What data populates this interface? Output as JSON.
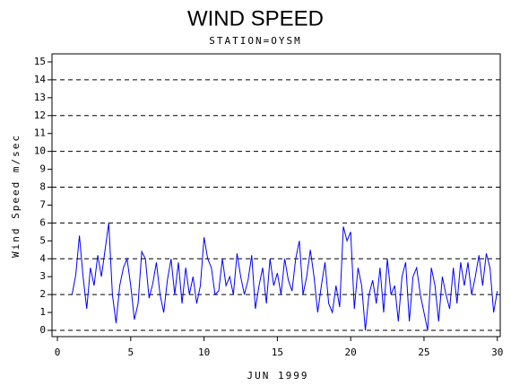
{
  "chart_data": {
    "type": "line",
    "title": "WIND SPEED",
    "subtitle": "STATION=OYSM",
    "ylabel": "Wind Speed m/sec",
    "xlabel": "JUN 1999",
    "color": "#0000ff",
    "x": [
      1.0,
      1.25,
      1.5,
      1.75,
      2.0,
      2.25,
      2.5,
      2.75,
      3.0,
      3.25,
      3.5,
      3.75,
      4.0,
      4.25,
      4.5,
      4.75,
      5.0,
      5.25,
      5.5,
      5.75,
      6.0,
      6.25,
      6.5,
      6.75,
      7.0,
      7.25,
      7.5,
      7.75,
      8.0,
      8.25,
      8.5,
      8.75,
      9.0,
      9.25,
      9.5,
      9.75,
      10.0,
      10.25,
      10.5,
      10.75,
      11.0,
      11.25,
      11.5,
      11.75,
      12.0,
      12.25,
      12.5,
      12.75,
      13.0,
      13.25,
      13.5,
      13.75,
      14.0,
      14.25,
      14.5,
      14.75,
      15.0,
      15.25,
      15.5,
      15.75,
      16.0,
      16.25,
      16.5,
      16.75,
      17.0,
      17.25,
      17.5,
      17.75,
      18.0,
      18.25,
      18.5,
      18.75,
      19.0,
      19.25,
      19.5,
      19.75,
      20.0,
      20.25,
      20.5,
      20.75,
      21.0,
      21.25,
      21.5,
      21.75,
      22.0,
      22.25,
      22.5,
      22.75,
      23.0,
      23.25,
      23.5,
      23.75,
      24.0,
      24.25,
      24.5,
      24.75,
      25.0,
      25.25,
      25.5,
      25.75,
      26.0,
      26.25,
      26.5,
      26.75,
      27.0,
      27.25,
      27.5,
      27.75,
      28.0,
      28.25,
      28.5,
      28.75,
      29.0,
      29.25,
      29.5,
      29.75,
      30.0
    ],
    "values": [
      2.0,
      3.1,
      5.3,
      3.0,
      1.2,
      3.5,
      2.5,
      4.2,
      3.0,
      4.5,
      6.0,
      2.0,
      0.4,
      2.5,
      3.5,
      4.0,
      2.5,
      0.6,
      1.5,
      4.4,
      4.0,
      1.8,
      2.6,
      3.8,
      2.0,
      1.0,
      2.8,
      4.0,
      2.0,
      3.8,
      1.5,
      3.5,
      2.0,
      3.0,
      1.5,
      2.5,
      5.2,
      4.0,
      3.5,
      2.0,
      2.2,
      4.0,
      2.5,
      3.0,
      2.0,
      4.3,
      3.0,
      2.0,
      2.8,
      4.2,
      1.2,
      2.5,
      3.5,
      1.5,
      4.0,
      2.5,
      3.2,
      2.0,
      4.0,
      2.8,
      2.2,
      4.0,
      5.0,
      2.0,
      3.0,
      4.5,
      3.0,
      1.0,
      2.5,
      3.8,
      1.5,
      1.0,
      2.5,
      1.3,
      5.8,
      5.0,
      5.5,
      1.2,
      3.5,
      2.5,
      0.0,
      2.0,
      2.8,
      1.5,
      3.5,
      1.0,
      4.0,
      2.0,
      2.5,
      0.5,
      3.0,
      3.8,
      0.5,
      3.0,
      3.5,
      2.0,
      1.0,
      0.0,
      3.5,
      2.5,
      0.5,
      3.0,
      2.0,
      1.2,
      3.5,
      1.5,
      3.8,
      2.5,
      3.8,
      2.0,
      3.0,
      4.2,
      2.5,
      4.3,
      3.5,
      1.0,
      2.2
    ],
    "xlim": [
      -0.37,
      30.2
    ],
    "xticks": [
      0,
      5,
      10,
      15,
      20,
      25,
      30
    ],
    "ylim": [
      -0.35,
      15.45
    ],
    "yticks": [
      0,
      1,
      2,
      3,
      4,
      5,
      6,
      7,
      8,
      9,
      10,
      11,
      12,
      13,
      14,
      15
    ],
    "grid_lines": [
      0,
      2,
      4,
      6,
      8,
      10,
      12,
      14
    ]
  }
}
